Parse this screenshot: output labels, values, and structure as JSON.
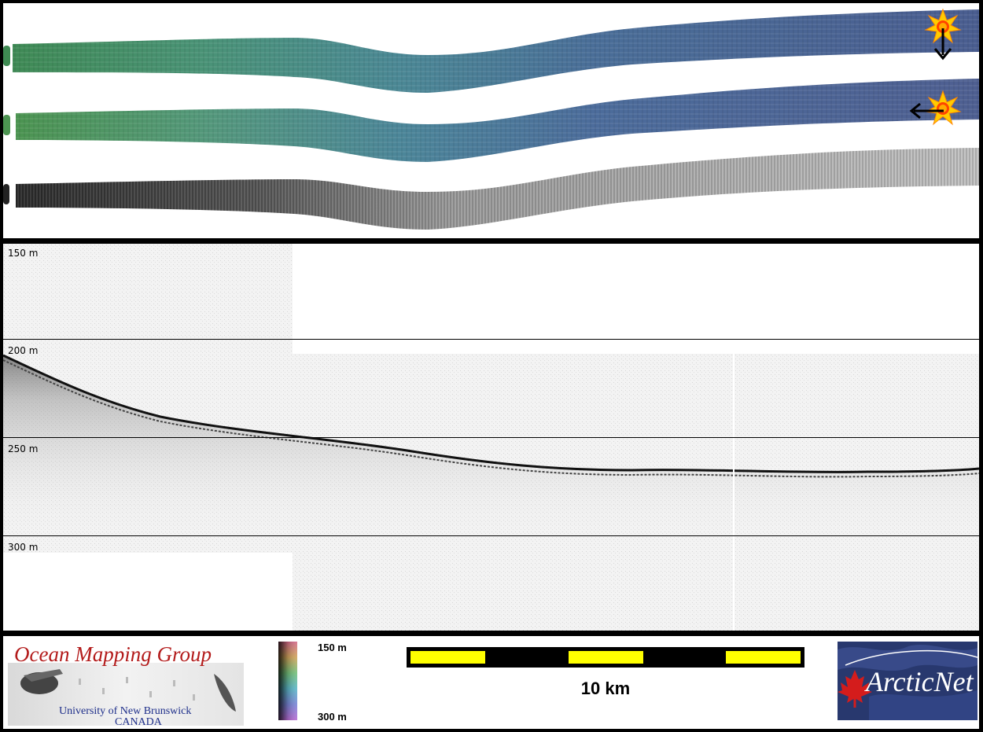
{
  "map_panel": {
    "swaths": [
      "bathymetry-sun-north",
      "bathymetry-sun-east",
      "backscatter"
    ]
  },
  "profile": {
    "depth_labels": [
      "150 m",
      "200 m",
      "250 m",
      "300 m"
    ]
  },
  "footer": {
    "omg_logo": {
      "title": "Ocean Mapping Group",
      "line1": "University of New Brunswick",
      "line2": "CANADA"
    },
    "colorbar": {
      "top_label": "150 m",
      "bottom_label": "300 m"
    },
    "scalebar": {
      "label": "10 km",
      "segments": 5
    },
    "arcticnet_logo": {
      "brand": "ArcticNet"
    }
  },
  "colors": {
    "scalebar_yellow": "#ffff00",
    "sun_icon": "#ffcc00",
    "omg_title": "#b31b1b",
    "omg_sub": "#1d2e8a"
  },
  "icons": [
    "sun-icon",
    "arrow-down-icon",
    "arrow-left-icon",
    "maple-leaf-icon"
  ]
}
